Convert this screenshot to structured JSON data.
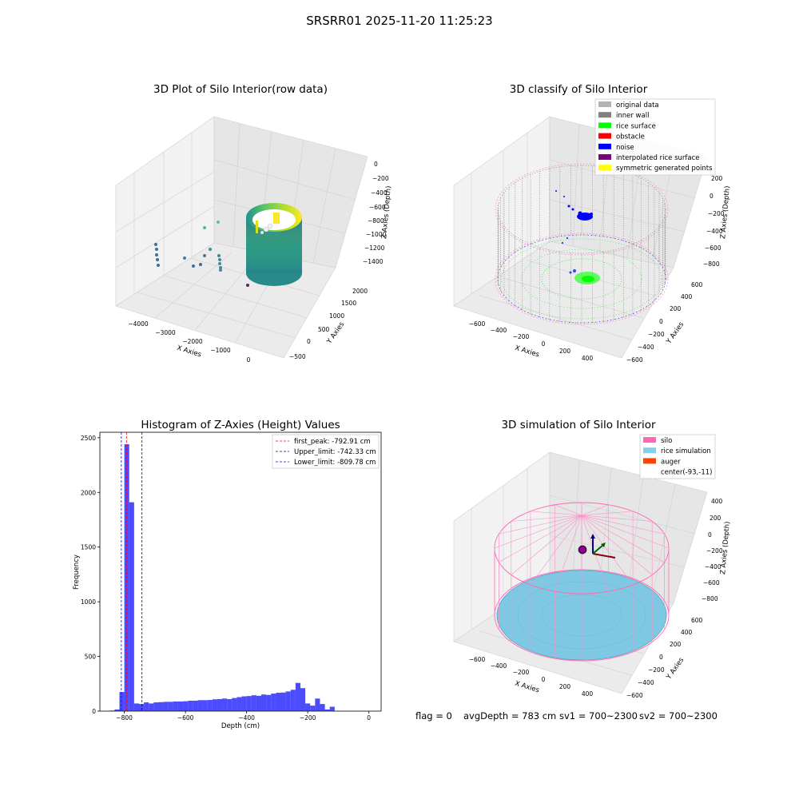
{
  "figure": {
    "suptitle": "SRSRR01 2025-11-20 11:25:23",
    "footer": {
      "flag": "flag = 0",
      "avg_depth": "avgDepth = 783 cm",
      "sv1": "sv1 = 700~2300",
      "sv2": "sv2 = 700~2300"
    }
  },
  "chart_data": [
    {
      "type": "scatter",
      "title": "3D Plot of Silo Interior(row data)",
      "xlabel": "X Axies",
      "ylabel": "Y Axies",
      "zlabel": "Z Axies (Depth)",
      "x_ticks": [
        "−4000",
        "−3000",
        "−2000",
        "−1000",
        "0"
      ],
      "y_ticks": [
        "−500",
        "0",
        "500",
        "1000",
        "1500",
        "2000"
      ],
      "z_ticks": [
        "0",
        "−200",
        "−400",
        "−600",
        "−800",
        "−1000",
        "−1200",
        "−1400"
      ],
      "colormap": [
        "#440154",
        "#3b528b",
        "#21918c",
        "#5ec962",
        "#fde725"
      ]
    },
    {
      "type": "scatter",
      "title": "3D classify of Silo Interior",
      "xlabel": "X Axies",
      "ylabel": "Y Axies",
      "zlabel": "Z Axies (Depth)",
      "x_ticks": [
        "−600",
        "−400",
        "−200",
        "0",
        "200",
        "400"
      ],
      "y_ticks": [
        "−600",
        "−400",
        "−200",
        "0",
        "200",
        "400",
        "600"
      ],
      "z_ticks": [
        "200",
        "0",
        "−200",
        "−400",
        "−600",
        "−800"
      ],
      "legend": [
        {
          "label": "original data",
          "color": "#b3b3b3"
        },
        {
          "label": "inner wall",
          "color": "#808080"
        },
        {
          "label": "rice surface",
          "color": "#00ff00"
        },
        {
          "label": "obstacle",
          "color": "#ff0000"
        },
        {
          "label": "noise",
          "color": "#0000ff"
        },
        {
          "label": "interpolated rice surface",
          "color": "#800080"
        },
        {
          "label": "symmetric generated points",
          "color": "#ffff00"
        }
      ],
      "legend_position": "top-right"
    },
    {
      "type": "bar",
      "title": "Histogram of Z-Axies (Height) Values",
      "xlabel": "Depth (cm)",
      "ylabel": "Frequency",
      "xlim": [
        -880,
        40
      ],
      "ylim": [
        0,
        2550
      ],
      "x_ticks": [
        -800,
        -600,
        -400,
        -200,
        0
      ],
      "y_ticks": [
        0,
        500,
        1000,
        1500,
        2000,
        2500
      ],
      "bin_width": 16,
      "bin_start": -848,
      "color": "#0000ff",
      "values": [
        5,
        15,
        175,
        2440,
        1910,
        70,
        65,
        80,
        70,
        80,
        82,
        85,
        85,
        88,
        88,
        90,
        95,
        95,
        100,
        100,
        102,
        108,
        110,
        115,
        110,
        120,
        128,
        135,
        138,
        145,
        140,
        152,
        148,
        160,
        168,
        170,
        180,
        195,
        258,
        210,
        70,
        50,
        115,
        65,
        15,
        40
      ],
      "vlines": [
        {
          "label": "first_peak: -792.91 cm",
          "value": -792.91,
          "color": "#ff0000"
        },
        {
          "label": "Upper_limit: -742.33 cm",
          "value": -742.33,
          "color": "#00008b"
        },
        {
          "label": "Lower_limit: -809.78 cm",
          "value": -809.78,
          "color": "#0000ff"
        }
      ],
      "legend_position": "top-right"
    },
    {
      "type": "scatter",
      "title": "3D simulation of Silo Interior",
      "xlabel": "X Axies",
      "ylabel": "Y Axies",
      "zlabel": "Z Axies (Depth)",
      "x_ticks": [
        "−600",
        "−400",
        "−200",
        "0",
        "200",
        "400"
      ],
      "y_ticks": [
        "−600",
        "−400",
        "−200",
        "0",
        "200",
        "400",
        "600"
      ],
      "z_ticks": [
        "400",
        "200",
        "0",
        "−200",
        "−400",
        "−600",
        "−800"
      ],
      "legend": [
        {
          "label": "silo",
          "color": "#ff69b4"
        },
        {
          "label": "rice simulation",
          "color": "#87ceeb"
        },
        {
          "label": "auger",
          "color": "#ff4500"
        },
        {
          "label": "center(-93,-11)",
          "color": ""
        }
      ],
      "legend_position": "top-right"
    }
  ]
}
